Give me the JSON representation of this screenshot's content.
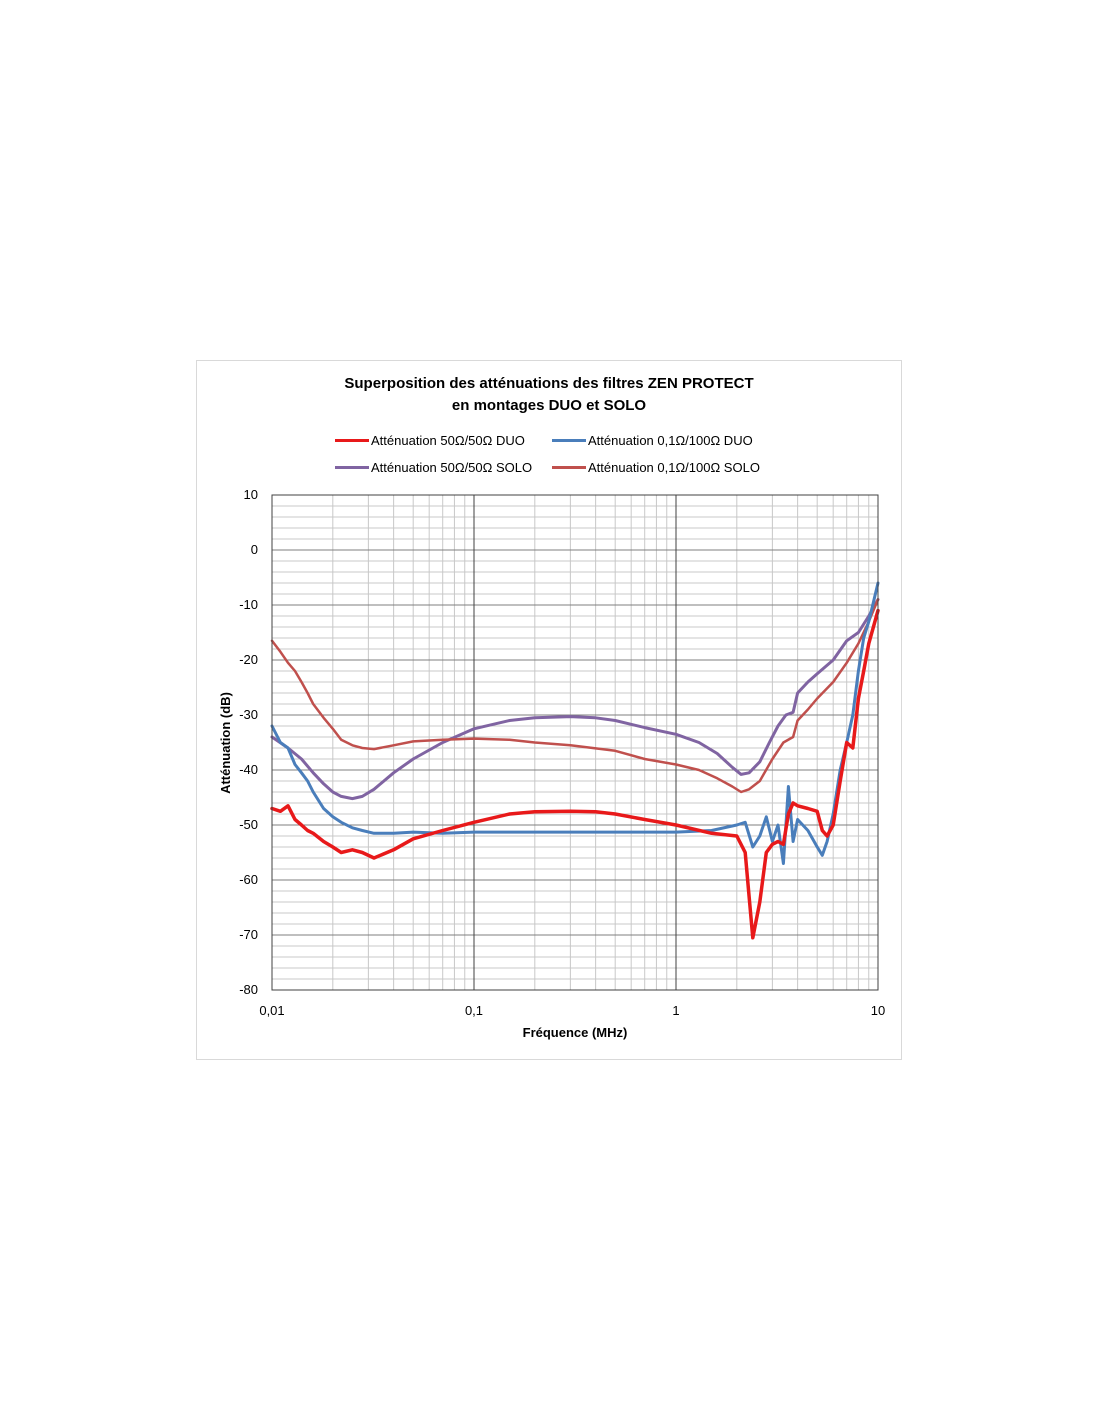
{
  "chart_data": {
    "type": "line",
    "title": "Superposition des atténuations des filtres ZEN PROTECT",
    "subtitle": "en montages DUO et SOLO",
    "xlabel": "Fréquence (MHz)",
    "ylabel": "Atténuation (dB)",
    "x_scale": "log",
    "xlim": [
      0.01,
      10
    ],
    "ylim": [
      -80,
      10
    ],
    "x_ticks": [
      "0,01",
      "0,1",
      "1",
      "10"
    ],
    "y_ticks": [
      "10",
      "0",
      "-10",
      "-20",
      "-30",
      "-40",
      "-50",
      "-60",
      "-70",
      "-80"
    ],
    "grid": true,
    "legend_position": "top",
    "series": [
      {
        "name": "Atténuation 50Ω/50Ω DUO",
        "color": "#e8191a",
        "points": [
          [
            0.01,
            -47
          ],
          [
            0.011,
            -47.5
          ],
          [
            0.012,
            -46.5
          ],
          [
            0.013,
            -49
          ],
          [
            0.014,
            -50
          ],
          [
            0.015,
            -51
          ],
          [
            0.016,
            -51.5
          ],
          [
            0.018,
            -53
          ],
          [
            0.02,
            -54
          ],
          [
            0.022,
            -55
          ],
          [
            0.025,
            -54.5
          ],
          [
            0.028,
            -55
          ],
          [
            0.032,
            -56
          ],
          [
            0.04,
            -54.5
          ],
          [
            0.05,
            -52.5
          ],
          [
            0.07,
            -51
          ],
          [
            0.1,
            -49.5
          ],
          [
            0.15,
            -48
          ],
          [
            0.2,
            -47.6
          ],
          [
            0.3,
            -47.5
          ],
          [
            0.4,
            -47.6
          ],
          [
            0.5,
            -48
          ],
          [
            0.7,
            -49
          ],
          [
            1.0,
            -50
          ],
          [
            1.5,
            -51.5
          ],
          [
            2.0,
            -52
          ],
          [
            2.2,
            -55
          ],
          [
            2.3,
            -63
          ],
          [
            2.4,
            -70.5
          ],
          [
            2.6,
            -64
          ],
          [
            2.8,
            -55
          ],
          [
            3.0,
            -53.5
          ],
          [
            3.2,
            -53
          ],
          [
            3.4,
            -53.5
          ],
          [
            3.6,
            -48
          ],
          [
            3.8,
            -46
          ],
          [
            4.0,
            -46.5
          ],
          [
            4.5,
            -47
          ],
          [
            5.0,
            -47.5
          ],
          [
            5.3,
            -51
          ],
          [
            5.6,
            -52
          ],
          [
            6.0,
            -50
          ],
          [
            6.5,
            -42
          ],
          [
            7.0,
            -35
          ],
          [
            7.5,
            -36
          ],
          [
            8.0,
            -27
          ],
          [
            8.5,
            -22
          ],
          [
            9.0,
            -17
          ],
          [
            10,
            -11
          ]
        ]
      },
      {
        "name": "Atténuation 0,1Ω/100Ω DUO",
        "color": "#4a7ebb",
        "points": [
          [
            0.01,
            -32
          ],
          [
            0.011,
            -35
          ],
          [
            0.012,
            -36
          ],
          [
            0.013,
            -39
          ],
          [
            0.014,
            -40.5
          ],
          [
            0.015,
            -42
          ],
          [
            0.016,
            -44
          ],
          [
            0.018,
            -47
          ],
          [
            0.02,
            -48.5
          ],
          [
            0.022,
            -49.5
          ],
          [
            0.025,
            -50.5
          ],
          [
            0.028,
            -51
          ],
          [
            0.032,
            -51.5
          ],
          [
            0.04,
            -51.5
          ],
          [
            0.05,
            -51.3
          ],
          [
            0.07,
            -51.5
          ],
          [
            0.1,
            -51.3
          ],
          [
            0.2,
            -51.3
          ],
          [
            0.5,
            -51.3
          ],
          [
            1.0,
            -51.3
          ],
          [
            1.5,
            -51
          ],
          [
            2.0,
            -50
          ],
          [
            2.2,
            -49.5
          ],
          [
            2.4,
            -54
          ],
          [
            2.6,
            -52
          ],
          [
            2.8,
            -48.5
          ],
          [
            3.0,
            -53
          ],
          [
            3.2,
            -50
          ],
          [
            3.4,
            -57
          ],
          [
            3.6,
            -43
          ],
          [
            3.8,
            -53
          ],
          [
            4.0,
            -49
          ],
          [
            4.5,
            -51
          ],
          [
            5.0,
            -54
          ],
          [
            5.3,
            -55.5
          ],
          [
            5.6,
            -53
          ],
          [
            6.0,
            -48
          ],
          [
            6.5,
            -40
          ],
          [
            7.0,
            -35
          ],
          [
            7.5,
            -30
          ],
          [
            8.0,
            -22
          ],
          [
            8.5,
            -16
          ],
          [
            9.0,
            -13
          ],
          [
            10,
            -6
          ]
        ]
      },
      {
        "name": "Atténuation 50Ω/50Ω SOLO",
        "color": "#8064a2",
        "points": [
          [
            0.01,
            -34
          ],
          [
            0.012,
            -36
          ],
          [
            0.014,
            -38
          ],
          [
            0.016,
            -40.5
          ],
          [
            0.018,
            -42.5
          ],
          [
            0.02,
            -44
          ],
          [
            0.022,
            -44.8
          ],
          [
            0.025,
            -45.2
          ],
          [
            0.028,
            -44.8
          ],
          [
            0.032,
            -43.5
          ],
          [
            0.04,
            -40.5
          ],
          [
            0.05,
            -38
          ],
          [
            0.07,
            -35
          ],
          [
            0.1,
            -32.5
          ],
          [
            0.15,
            -31
          ],
          [
            0.2,
            -30.5
          ],
          [
            0.3,
            -30.3
          ],
          [
            0.4,
            -30.5
          ],
          [
            0.5,
            -31
          ],
          [
            0.7,
            -32.3
          ],
          [
            1.0,
            -33.5
          ],
          [
            1.3,
            -35
          ],
          [
            1.6,
            -37
          ],
          [
            1.9,
            -39.5
          ],
          [
            2.1,
            -40.8
          ],
          [
            2.3,
            -40.5
          ],
          [
            2.6,
            -38.5
          ],
          [
            2.9,
            -35
          ],
          [
            3.2,
            -32
          ],
          [
            3.5,
            -30
          ],
          [
            3.8,
            -29.5
          ],
          [
            4.0,
            -26
          ],
          [
            4.5,
            -24
          ],
          [
            5.0,
            -22.5
          ],
          [
            6.0,
            -20
          ],
          [
            7.0,
            -16.5
          ],
          [
            8.0,
            -15
          ],
          [
            9.0,
            -12
          ],
          [
            10,
            -9
          ]
        ]
      },
      {
        "name": "Atténuation 0,1Ω/100Ω SOLO",
        "color": "#c0504d",
        "points": [
          [
            0.01,
            -16.5
          ],
          [
            0.011,
            -18.5
          ],
          [
            0.012,
            -20.5
          ],
          [
            0.013,
            -22
          ],
          [
            0.014,
            -24
          ],
          [
            0.015,
            -26
          ],
          [
            0.016,
            -28
          ],
          [
            0.018,
            -30.5
          ],
          [
            0.02,
            -32.5
          ],
          [
            0.022,
            -34.5
          ],
          [
            0.025,
            -35.5
          ],
          [
            0.028,
            -36
          ],
          [
            0.032,
            -36.2
          ],
          [
            0.04,
            -35.5
          ],
          [
            0.05,
            -34.8
          ],
          [
            0.07,
            -34.5
          ],
          [
            0.1,
            -34.3
          ],
          [
            0.15,
            -34.5
          ],
          [
            0.2,
            -35
          ],
          [
            0.3,
            -35.5
          ],
          [
            0.5,
            -36.5
          ],
          [
            0.7,
            -38
          ],
          [
            1.0,
            -39
          ],
          [
            1.3,
            -40
          ],
          [
            1.6,
            -41.5
          ],
          [
            1.9,
            -43
          ],
          [
            2.1,
            -44
          ],
          [
            2.3,
            -43.5
          ],
          [
            2.6,
            -42
          ],
          [
            3.0,
            -38
          ],
          [
            3.4,
            -35
          ],
          [
            3.8,
            -34
          ],
          [
            4.0,
            -31
          ],
          [
            4.5,
            -29
          ],
          [
            5.0,
            -27
          ],
          [
            6.0,
            -24
          ],
          [
            7.0,
            -20.5
          ],
          [
            8.0,
            -17
          ],
          [
            9.0,
            -13
          ],
          [
            10,
            -9
          ]
        ]
      }
    ]
  }
}
